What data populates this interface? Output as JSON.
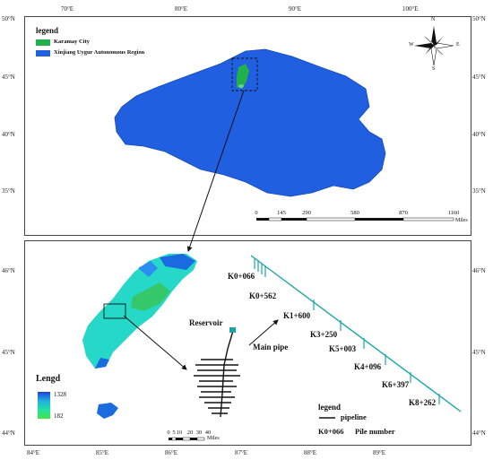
{
  "top_map": {
    "lon_ticks": [
      "70°E",
      "80°E",
      "90°E",
      "100°E"
    ],
    "lat_ticks": [
      "50°N",
      "45°N",
      "40°N",
      "35°N"
    ],
    "legend": {
      "title": "legend",
      "items": [
        {
          "label": "Karamay City",
          "color": "#22b04b"
        },
        {
          "label": "Xinjiang Uygur Autonomous Region",
          "color": "#1f5fe0"
        }
      ]
    },
    "compass": {
      "n": "N",
      "s": "S",
      "e": "E",
      "w": "W"
    },
    "scalebar": {
      "labels": [
        "0",
        "145",
        "290",
        "580",
        "870",
        "1160"
      ],
      "unit": "Miles"
    }
  },
  "bottom_map": {
    "lon_ticks": [
      "84°E",
      "85°E",
      "86°E",
      "87°E",
      "88°E",
      "89°E"
    ],
    "lat_ticks": [
      "46°N",
      "45°N",
      "44°N"
    ],
    "elev_legend": {
      "title": "Lengd",
      "max": "1328",
      "min": "182"
    },
    "reservoir_label": "Reservoir",
    "main_pipe_label": "Main pipe",
    "piles": [
      "K0+066",
      "K0+562",
      "K1+600",
      "K3+250",
      "K5+003",
      "K4+096",
      "K6+397",
      "K8+262"
    ],
    "scalebar": {
      "labels": [
        "0",
        "5",
        "10",
        "20",
        "30",
        "40"
      ],
      "unit": "Miles"
    },
    "legend": {
      "title": "legend",
      "pipeline": "pipeline",
      "pile_example": "K0+066",
      "pile_text": "Pile number"
    },
    "colors": {
      "pipeline": "#1aa6a6",
      "pipe": "#111111"
    }
  }
}
